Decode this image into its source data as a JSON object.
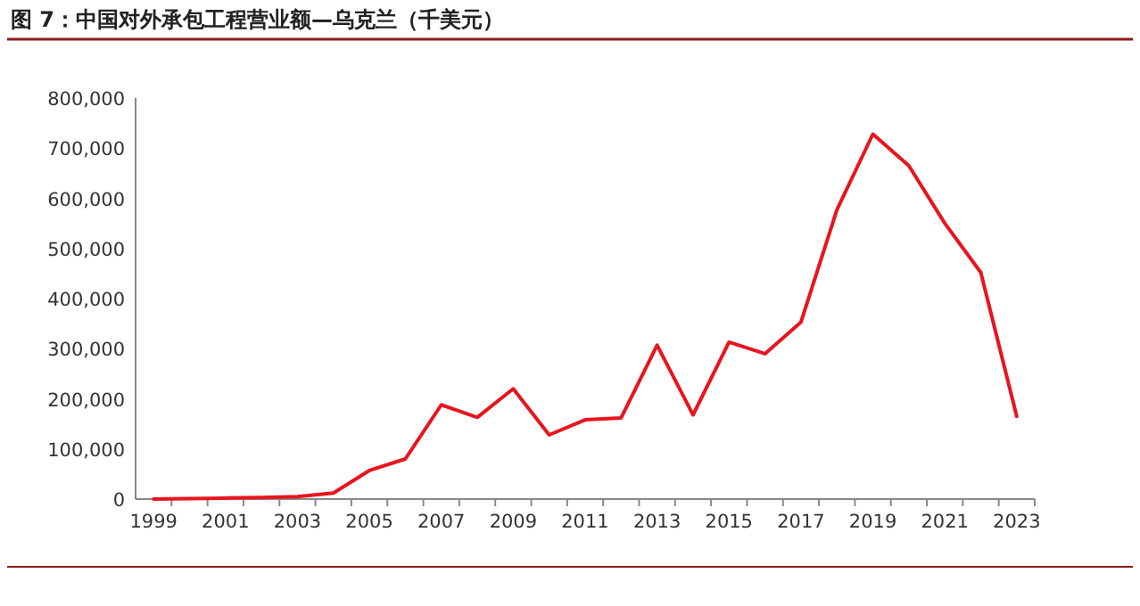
{
  "chart_data": {
    "type": "line",
    "title": "图 7：中国对外承包工程营业额—乌克兰（千美元）",
    "categories": [
      "1999",
      null,
      "2001",
      null,
      "2003",
      null,
      "2005",
      null,
      "2007",
      null,
      "2009",
      null,
      "2011",
      null,
      "2013",
      null,
      "2015",
      null,
      "2017",
      null,
      "2019",
      null,
      "2021",
      null,
      "2023"
    ],
    "values": [
      0,
      1000,
      2000,
      3000,
      5000,
      12000,
      57000,
      80000,
      188000,
      163000,
      220000,
      128000,
      158000,
      162000,
      307000,
      168000,
      313000,
      290000,
      353000,
      577000,
      728000,
      665000,
      550000,
      452000,
      165000
    ],
    "color": "#e8141e",
    "ylim": [
      0,
      800000
    ],
    "yticks": [
      {
        "value": 0,
        "label": "0"
      },
      {
        "value": 100000,
        "label": "100,000"
      },
      {
        "value": 200000,
        "label": "200,000"
      },
      {
        "value": 300000,
        "label": "300,000"
      },
      {
        "value": 400000,
        "label": "400,000"
      },
      {
        "value": 500000,
        "label": "500,000"
      },
      {
        "value": 600000,
        "label": "600,000"
      },
      {
        "value": 700000,
        "label": "700,000"
      },
      {
        "value": 800000,
        "label": "800,000"
      }
    ]
  }
}
